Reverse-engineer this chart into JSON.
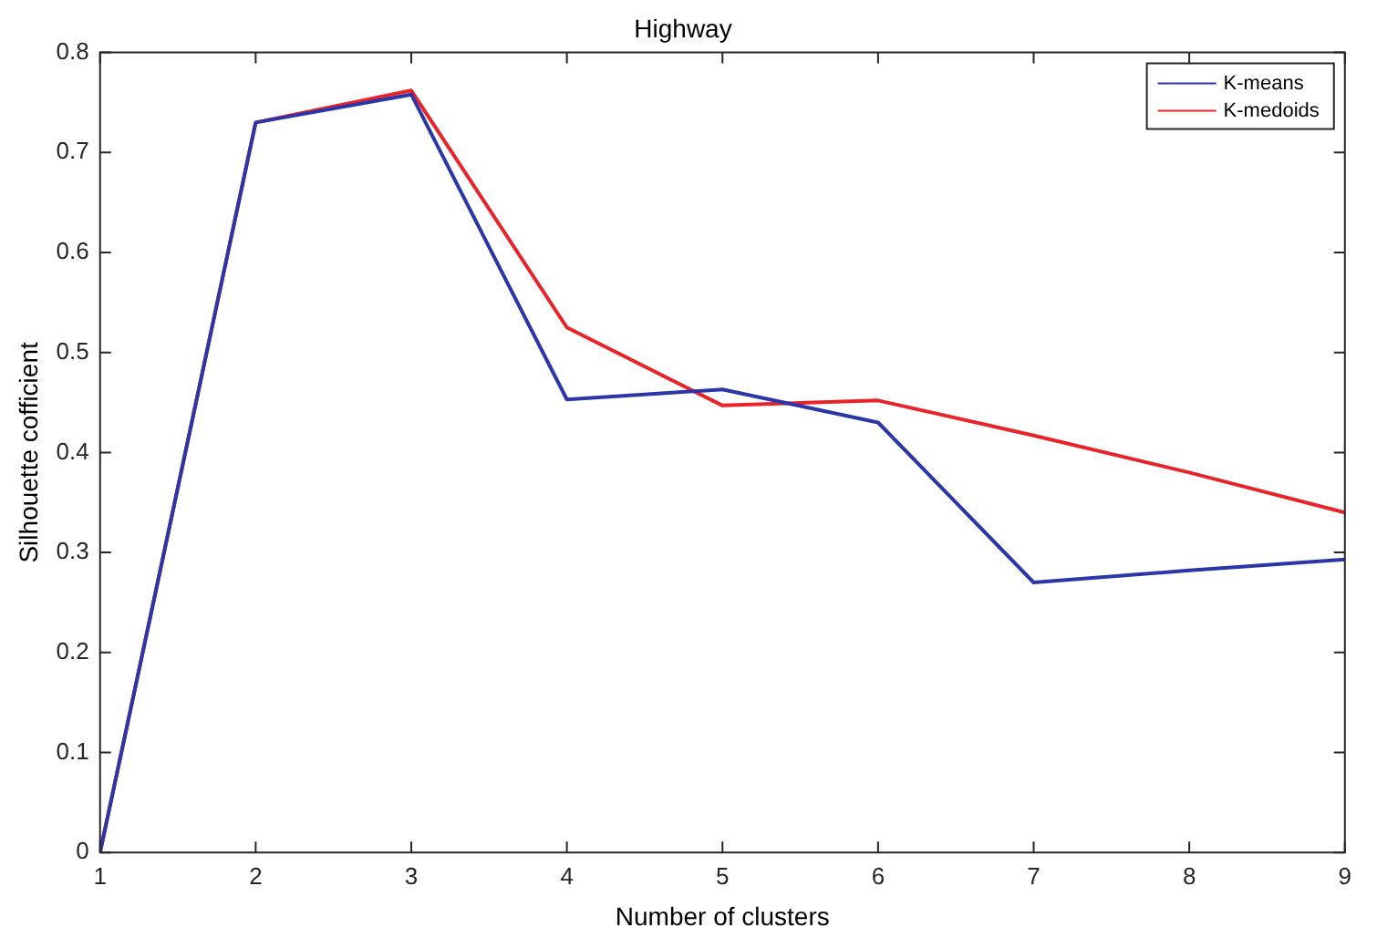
{
  "chart_data": {
    "type": "line",
    "title": "Highway",
    "xlabel": "Number of clusters",
    "ylabel": "Silhouette cofficient",
    "x": [
      1,
      2,
      3,
      4,
      5,
      6,
      7,
      8,
      9
    ],
    "series": [
      {
        "name": "K-means",
        "color": "#2b36a8",
        "values": [
          0,
          0.73,
          0.758,
          0.453,
          0.463,
          0.43,
          0.27,
          0.282,
          0.293
        ]
      },
      {
        "name": "K-medoids",
        "color": "#e8242a",
        "values": [
          0,
          0.73,
          0.762,
          0.525,
          0.447,
          0.452,
          0.417,
          0.38,
          0.34
        ]
      }
    ],
    "xlim": [
      1,
      9
    ],
    "xticks": [
      1,
      2,
      3,
      4,
      5,
      6,
      7,
      8,
      9
    ],
    "ylim": [
      0,
      0.8
    ],
    "yticks": [
      0,
      0.1,
      0.2,
      0.3,
      0.4,
      0.5,
      0.6,
      0.7,
      0.8
    ],
    "grid": false,
    "legend": "top right",
    "marker": "none",
    "line_style": "solid"
  }
}
